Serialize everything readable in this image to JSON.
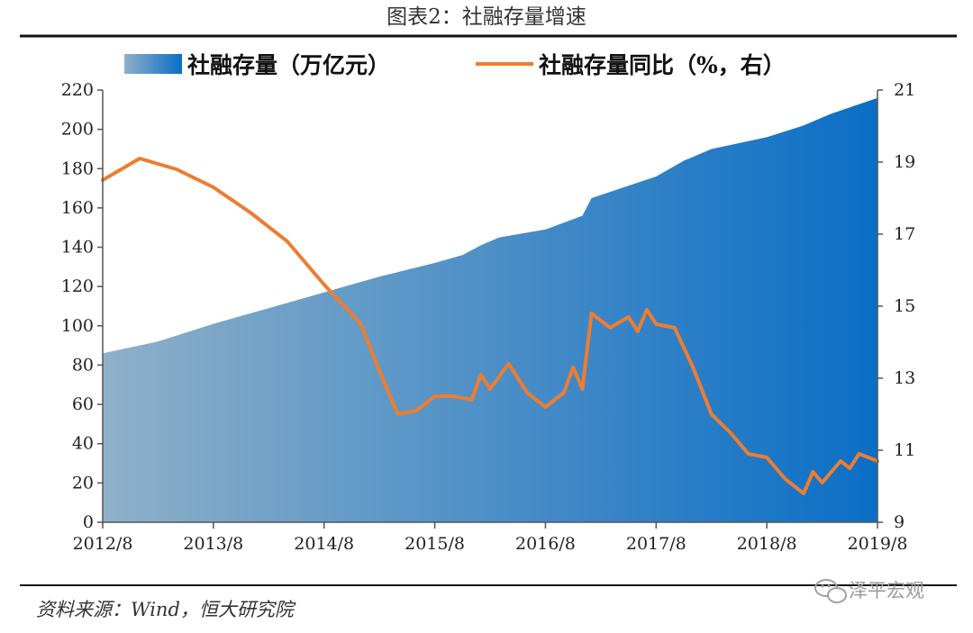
{
  "title": "图表2：社融存量增速",
  "source": "资料来源：Wind，恒大研究院",
  "watermark": "泽平宏观",
  "colors": {
    "area_start": "#8fb0c8",
    "area_end": "#0a6ec6",
    "line": "#ed7d31",
    "axis": "#555555"
  },
  "chart_data": {
    "type": "area",
    "title": "图表2：社融存量增速",
    "legend_placement": "top",
    "grid": false,
    "x_ticks": [
      "2012/8",
      "2013/8",
      "2014/8",
      "2015/8",
      "2016/8",
      "2017/8",
      "2018/8",
      "2019/8"
    ],
    "x_range": [
      "2012/8",
      "2019/8"
    ],
    "y_left": {
      "ylim": [
        0,
        220
      ],
      "ticks": [
        0,
        20,
        40,
        60,
        80,
        100,
        120,
        140,
        160,
        180,
        200,
        220
      ],
      "label": ""
    },
    "y_right": {
      "ylim": [
        9,
        21
      ],
      "ticks": [
        9,
        11,
        13,
        15,
        17,
        19,
        21
      ],
      "label": ""
    },
    "series": [
      {
        "name": "社融存量（万亿元）",
        "type": "area",
        "axis": "left",
        "x": [
          "2012/8",
          "2013/2",
          "2013/8",
          "2014/2",
          "2014/8",
          "2015/2",
          "2015/8",
          "2015/11",
          "2016/1",
          "2016/3",
          "2016/8",
          "2016/12",
          "2017/1",
          "2017/8",
          "2017/11",
          "2018/2",
          "2018/8",
          "2018/12",
          "2019/3",
          "2019/8"
        ],
        "values": [
          86,
          92,
          101,
          109,
          117,
          125,
          132,
          136,
          141,
          145,
          149,
          156,
          165,
          176,
          184,
          190,
          196,
          202,
          208,
          216
        ]
      },
      {
        "name": "社融存量同比（%，右）",
        "type": "line",
        "axis": "right",
        "x": [
          "2012/8",
          "2012/12",
          "2013/4",
          "2013/8",
          "2013/12",
          "2014/4",
          "2014/8",
          "2014/12",
          "2015/2",
          "2015/4",
          "2015/6",
          "2015/8",
          "2015/10",
          "2015/12",
          "2016/1",
          "2016/2",
          "2016/4",
          "2016/6",
          "2016/8",
          "2016/10",
          "2016/11",
          "2016/12",
          "2017/1",
          "2017/3",
          "2017/5",
          "2017/6",
          "2017/7",
          "2017/8",
          "2017/10",
          "2017/12",
          "2018/2",
          "2018/4",
          "2018/6",
          "2018/8",
          "2018/10",
          "2018/12",
          "2019/1",
          "2019/2",
          "2019/4",
          "2019/5",
          "2019/6",
          "2019/8"
        ],
        "values": [
          18.5,
          19.1,
          18.8,
          18.3,
          17.6,
          16.8,
          15.6,
          14.5,
          13.2,
          12.0,
          12.1,
          12.5,
          12.5,
          12.4,
          13.1,
          12.7,
          13.4,
          12.6,
          12.2,
          12.6,
          13.3,
          12.7,
          14.8,
          14.4,
          14.7,
          14.3,
          14.9,
          14.5,
          14.4,
          13.3,
          12.0,
          11.5,
          10.9,
          10.8,
          10.2,
          9.8,
          10.4,
          10.1,
          10.7,
          10.5,
          10.9,
          10.7
        ]
      }
    ]
  }
}
